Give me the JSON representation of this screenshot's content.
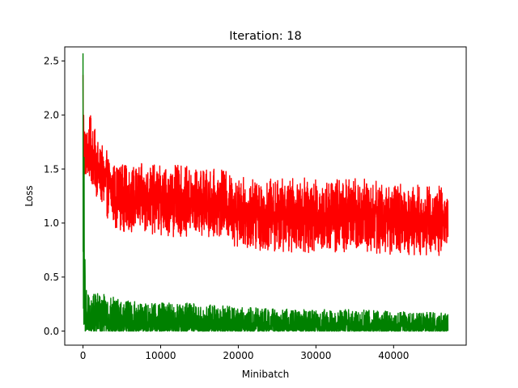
{
  "chart_data": {
    "type": "line",
    "title": "Iteration: 18",
    "xlabel": "Minibatch",
    "ylabel": "Loss",
    "xlim": [
      -2350,
      49350
    ],
    "ylim": [
      -0.13,
      2.63
    ],
    "xticks": [
      0,
      10000,
      20000,
      30000,
      40000
    ],
    "yticks": [
      0.0,
      0.5,
      1.0,
      1.5,
      2.0,
      2.5
    ],
    "xtick_labels": [
      "0",
      "10000",
      "20000",
      "30000",
      "40000"
    ],
    "ytick_labels": [
      "0.0",
      "0.5",
      "1.0",
      "1.5",
      "2.0",
      "2.5"
    ],
    "grid": false,
    "legend": "none",
    "series": [
      {
        "color": "#ff0000",
        "x_max": 47000,
        "initial_peak": 2.37,
        "envelope": [
          {
            "x": 0,
            "low": 1.35,
            "high": 2.37
          },
          {
            "x": 300,
            "low": 1.4,
            "high": 1.87
          },
          {
            "x": 1000,
            "low": 1.35,
            "high": 2.02
          },
          {
            "x": 2000,
            "low": 1.2,
            "high": 1.75
          },
          {
            "x": 3000,
            "low": 1.05,
            "high": 1.68
          },
          {
            "x": 4000,
            "low": 0.95,
            "high": 1.58
          },
          {
            "x": 6000,
            "low": 0.9,
            "high": 1.55
          },
          {
            "x": 10000,
            "low": 0.88,
            "high": 1.55
          },
          {
            "x": 15000,
            "low": 0.86,
            "high": 1.52
          },
          {
            "x": 18000,
            "low": 0.86,
            "high": 1.5
          },
          {
            "x": 20000,
            "low": 0.76,
            "high": 1.44
          },
          {
            "x": 25000,
            "low": 0.72,
            "high": 1.42
          },
          {
            "x": 30000,
            "low": 0.72,
            "high": 1.42
          },
          {
            "x": 35000,
            "low": 0.7,
            "high": 1.45
          },
          {
            "x": 40000,
            "low": 0.7,
            "high": 1.38
          },
          {
            "x": 47000,
            "low": 0.7,
            "high": 1.36
          }
        ]
      },
      {
        "color": "#008000",
        "x_max": 47000,
        "initial_peak": 2.57,
        "envelope": [
          {
            "x": 0,
            "low": 0.0,
            "high": 2.57
          },
          {
            "x": 300,
            "low": 0.0,
            "high": 0.5
          },
          {
            "x": 1000,
            "low": 0.0,
            "high": 0.4
          },
          {
            "x": 3000,
            "low": 0.0,
            "high": 0.33
          },
          {
            "x": 6000,
            "low": 0.0,
            "high": 0.28
          },
          {
            "x": 10000,
            "low": 0.0,
            "high": 0.26
          },
          {
            "x": 15000,
            "low": 0.0,
            "high": 0.26
          },
          {
            "x": 20000,
            "low": 0.0,
            "high": 0.22
          },
          {
            "x": 25000,
            "low": 0.0,
            "high": 0.21
          },
          {
            "x": 30000,
            "low": 0.0,
            "high": 0.2
          },
          {
            "x": 35000,
            "low": 0.0,
            "high": 0.2
          },
          {
            "x": 40000,
            "low": 0.0,
            "high": 0.18
          },
          {
            "x": 47000,
            "low": 0.0,
            "high": 0.17
          }
        ]
      }
    ]
  }
}
